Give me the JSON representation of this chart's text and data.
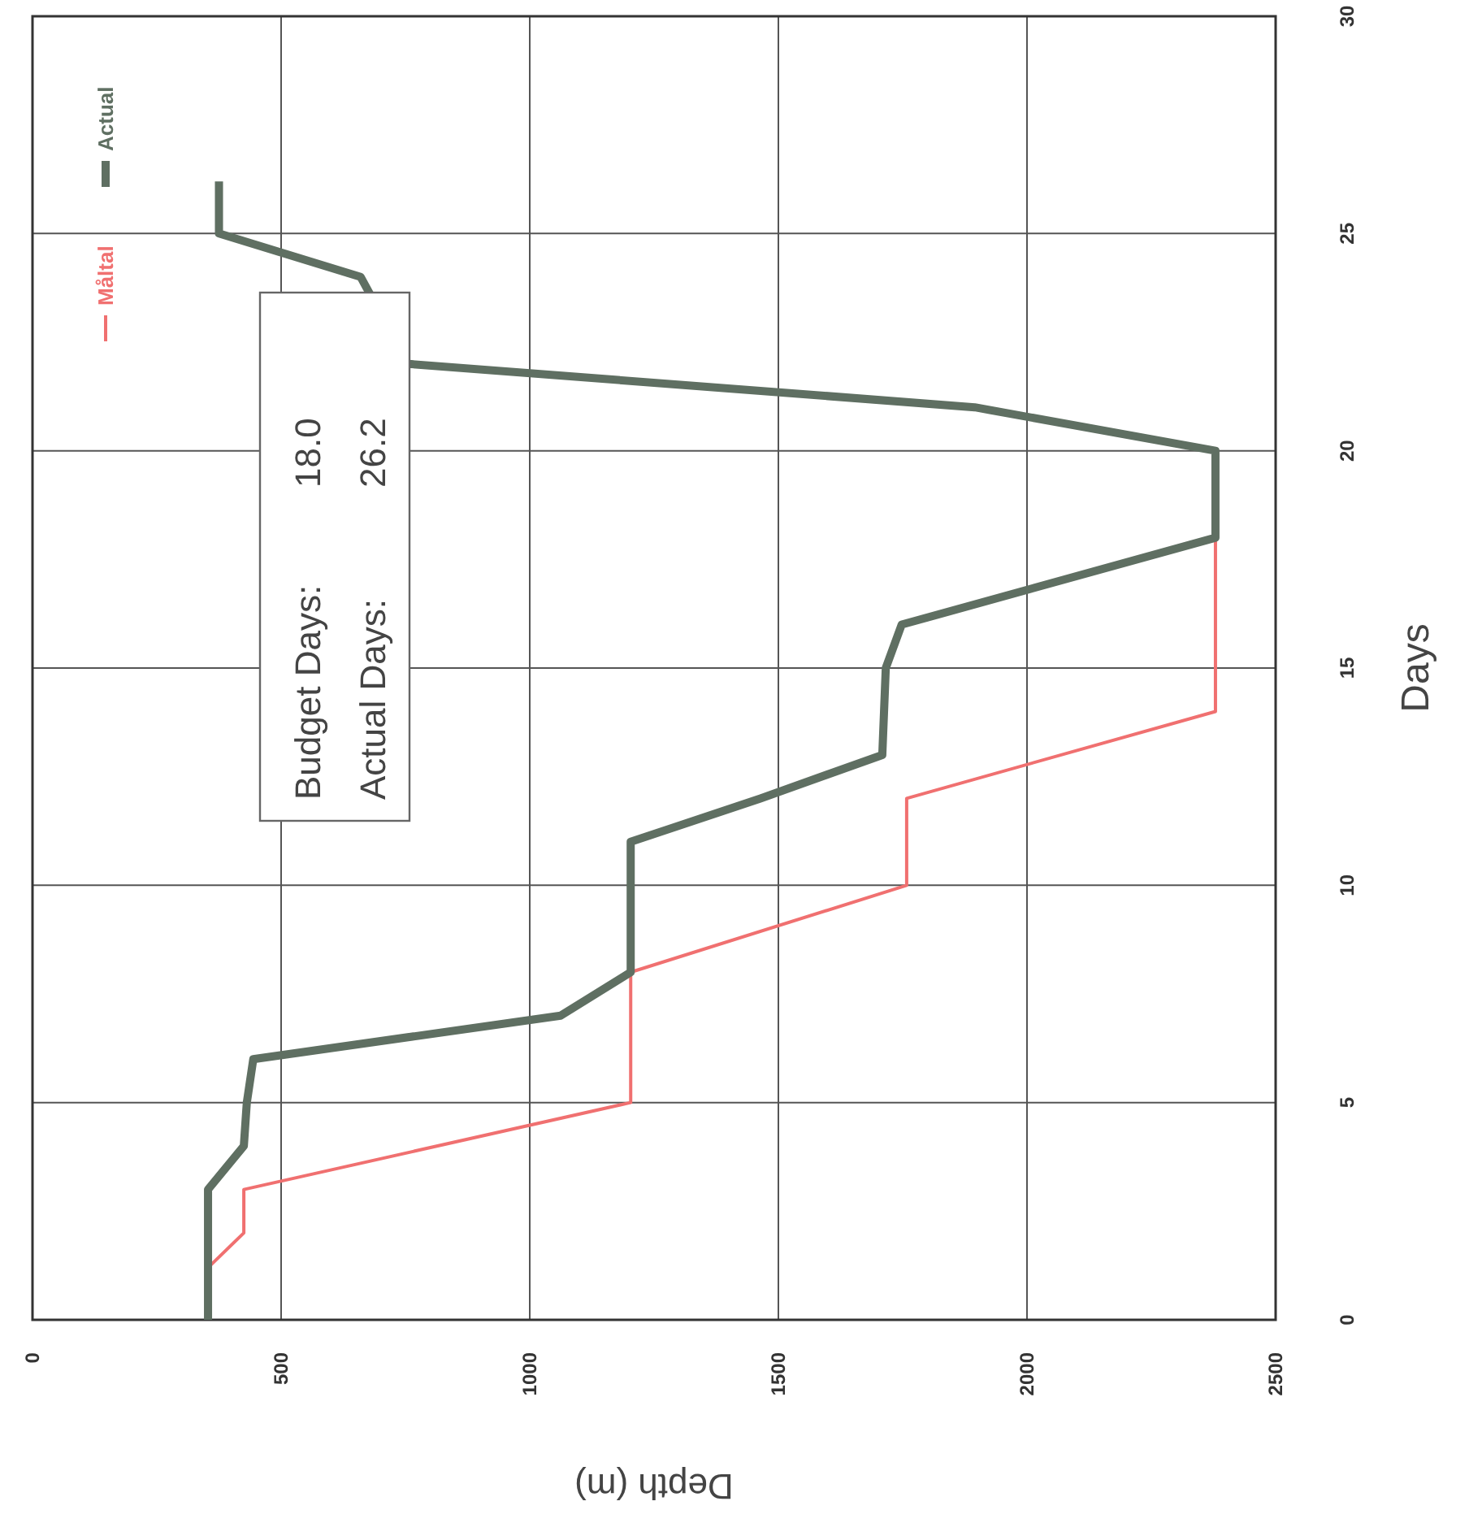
{
  "chart_data": {
    "type": "line",
    "xlabel": "Depth (m)",
    "ylabel": "Days",
    "xlim": [
      0,
      2500
    ],
    "xticks": [
      0,
      500,
      1000,
      1500,
      2000,
      2500
    ],
    "ylim": [
      0,
      30
    ],
    "yticks": [
      0,
      5,
      10,
      15,
      20,
      25,
      30
    ],
    "grid": true,
    "legend": "top left",
    "marker": "none",
    "line_style": "solid",
    "annotations": [
      "Budget Days: 18.0",
      "Actual Days: 26.2"
    ],
    "series": [
      {
        "name": "Måltal",
        "color": "#f07070",
        "x": [
          353,
          353,
          425,
          425,
          1203,
          1203,
          1758,
          1758,
          2379,
          2379
        ],
        "values": [
          0,
          1.2,
          2,
          3,
          5,
          8,
          10,
          12,
          14,
          18
        ]
      },
      {
        "name": "Actual",
        "color": "#5f6f62",
        "x": [
          353,
          353,
          425,
          431,
          444,
          1062,
          1203,
          1203,
          1464,
          1709,
          1716,
          1748,
          2379,
          2379,
          1895,
          755,
          660,
          375,
          375
        ],
        "values": [
          0,
          3,
          4,
          5,
          6,
          7,
          8,
          11,
          12,
          13,
          15,
          16,
          18,
          20,
          21,
          22,
          24,
          25,
          26.2
        ]
      }
    ]
  }
}
